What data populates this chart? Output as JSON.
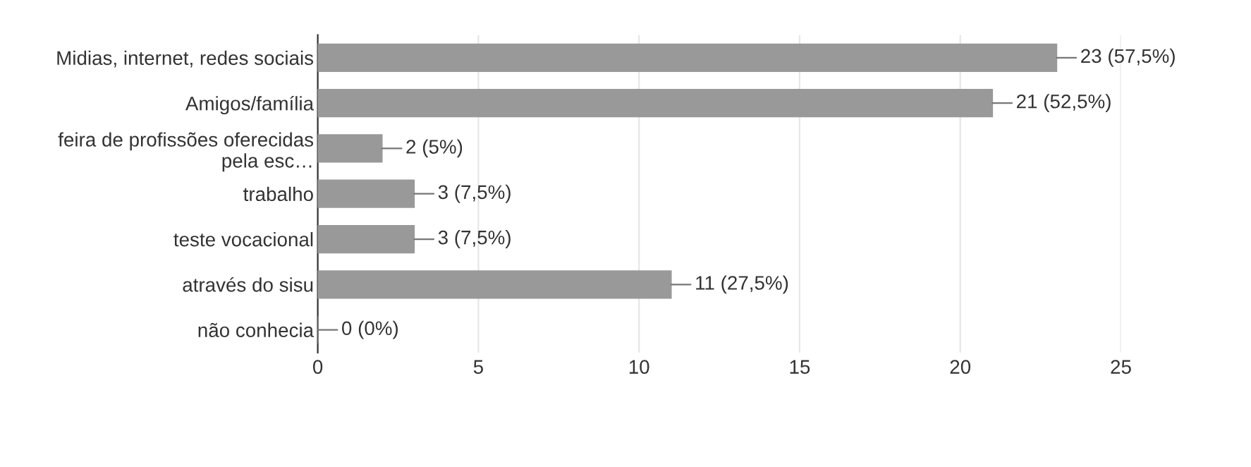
{
  "chart_data": {
    "type": "bar",
    "orientation": "horizontal",
    "categories": [
      "Midias, internet, redes sociais",
      "Amigos/família",
      "feira de profissões oferecidas\npela esc…",
      "trabalho",
      "teste vocacional",
      "através do sisu",
      "não conhecia"
    ],
    "values": [
      23,
      21,
      2,
      3,
      3,
      11,
      0
    ],
    "value_labels": [
      "23 (57,5%)",
      "21 (52,5%)",
      "2 (5%)",
      "3 (7,5%)",
      "3 (7,5%)",
      "11 (27,5%)",
      "0 (0%)"
    ],
    "color": "#999999",
    "xlim": [
      0,
      25
    ],
    "xticks": [
      0,
      5,
      10,
      15,
      20,
      25
    ],
    "grid": "x",
    "legend": false
  }
}
